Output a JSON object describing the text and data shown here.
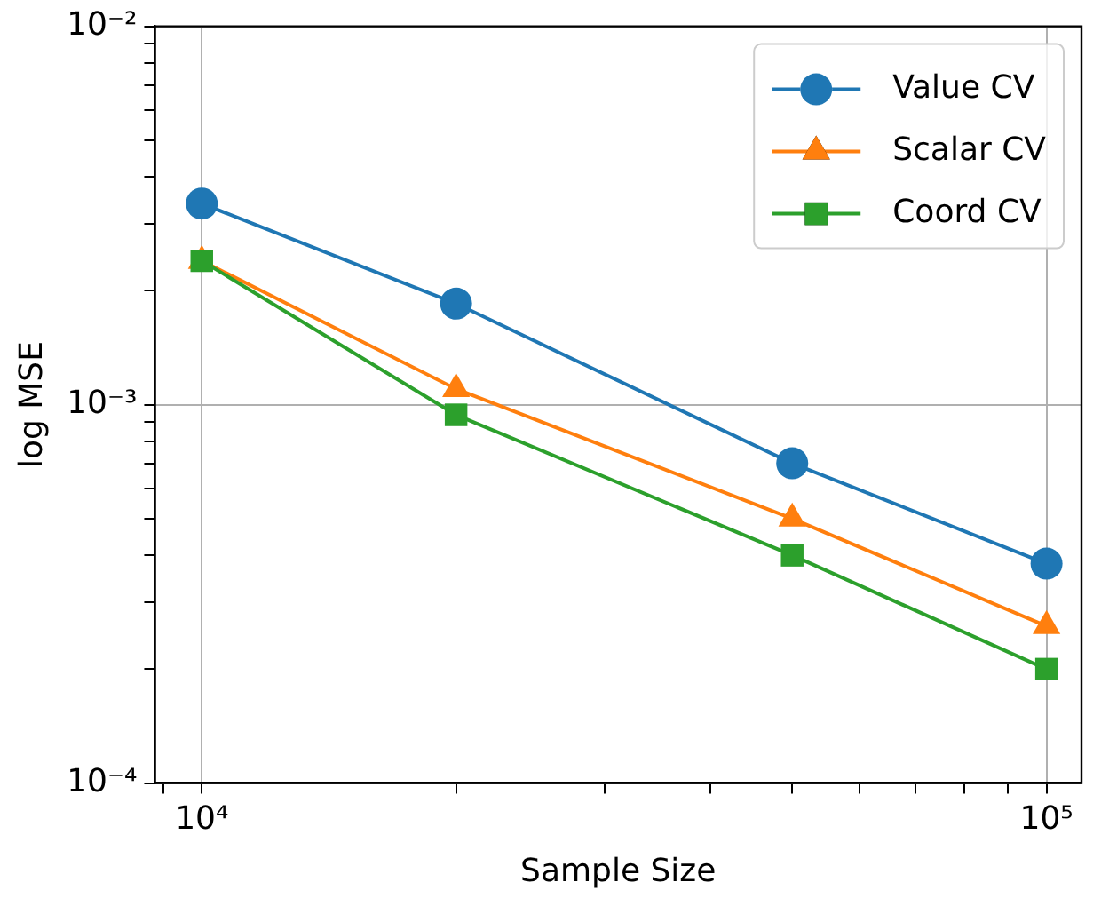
{
  "chart_data": {
    "type": "line",
    "xlabel": "Sample Size",
    "ylabel": "log MSE",
    "log": "xy",
    "grid": true,
    "legend": "top right",
    "line_style": "solid",
    "x": [
      10000,
      20000,
      50000,
      100000
    ],
    "xlim": [
      8800,
      110000
    ],
    "ylim": [
      0.0001,
      0.01
    ],
    "xticks": [
      {
        "value": 9000,
        "label": null
      },
      {
        "value": 10000,
        "label": "10⁴"
      },
      {
        "value": 20000,
        "label": null
      },
      {
        "value": 30000,
        "label": null
      },
      {
        "value": 40000,
        "label": null
      },
      {
        "value": 50000,
        "label": null
      },
      {
        "value": 60000,
        "label": null
      },
      {
        "value": 70000,
        "label": null
      },
      {
        "value": 80000,
        "label": null
      },
      {
        "value": 90000,
        "label": null
      },
      {
        "value": 100000,
        "label": "10⁵"
      }
    ],
    "yticks": [
      {
        "value": 0.0001,
        "label": "10⁻⁴"
      },
      {
        "value": 0.0002,
        "label": null
      },
      {
        "value": 0.0003,
        "label": null
      },
      {
        "value": 0.0004,
        "label": null
      },
      {
        "value": 0.0005,
        "label": null
      },
      {
        "value": 0.0006,
        "label": null
      },
      {
        "value": 0.0007,
        "label": null
      },
      {
        "value": 0.0008,
        "label": null
      },
      {
        "value": 0.0009,
        "label": null
      },
      {
        "value": 0.001,
        "label": "10⁻³"
      },
      {
        "value": 0.002,
        "label": null
      },
      {
        "value": 0.003,
        "label": null
      },
      {
        "value": 0.004,
        "label": null
      },
      {
        "value": 0.005,
        "label": null
      },
      {
        "value": 0.006,
        "label": null
      },
      {
        "value": 0.007,
        "label": null
      },
      {
        "value": 0.008,
        "label": null
      },
      {
        "value": 0.009,
        "label": null
      },
      {
        "value": 0.01,
        "label": "10⁻²"
      }
    ],
    "series": [
      {
        "name": "Value CV",
        "color": "#1f77b4",
        "marker": "circle",
        "values": [
          0.0034,
          0.00185,
          0.0007,
          0.00038
        ]
      },
      {
        "name": "Scalar CV",
        "color": "#ff7f0e",
        "marker": "triangle",
        "values": [
          0.0024,
          0.0011,
          0.0005,
          0.00026
        ]
      },
      {
        "name": "Coord CV",
        "color": "#2ca02c",
        "marker": "square",
        "values": [
          0.0024,
          0.00094,
          0.0004,
          0.0002
        ]
      }
    ]
  }
}
